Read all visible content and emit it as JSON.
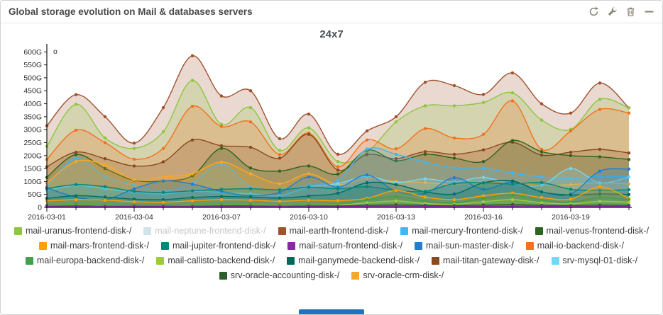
{
  "panel": {
    "title": "Global storage evolution on Mail & databases servers",
    "toolbar_icons": [
      "refresh-icon",
      "wrench-icon",
      "trash-icon",
      "collapse-icon"
    ],
    "icon_color": "#8d8679",
    "accent_bar_color": "#1e73be"
  },
  "chart": {
    "title": "24x7"
  },
  "chart_data": {
    "type": "area",
    "title": "24x7",
    "unit": "G",
    "ylim": [
      0,
      620
    ],
    "y_tick_step": 50,
    "y_tick_labels": [
      "0",
      "50G",
      "100G",
      "150G",
      "200G",
      "250G",
      "300G",
      "350G",
      "400G",
      "450G",
      "500G",
      "550G",
      "600G"
    ],
    "x_major_tick_labels": [
      "2016-03-01",
      "2016-03-04",
      "2016-03-07",
      "2016-03-10",
      "2016-03-13",
      "2016-03-16",
      "2016-03-19"
    ],
    "grid": false,
    "legend_position": "bottom",
    "annotation": "o",
    "dates": [
      "2016-03-01",
      "2016-03-02",
      "2016-03-03",
      "2016-03-04",
      "2016-03-05",
      "2016-03-06",
      "2016-03-07",
      "2016-03-08",
      "2016-03-09",
      "2016-03-10",
      "2016-03-11",
      "2016-03-12",
      "2016-03-13",
      "2016-03-14",
      "2016-03-15",
      "2016-03-16",
      "2016-03-17",
      "2016-03-18",
      "2016-03-19",
      "2016-03-20",
      "2016-03-21"
    ],
    "series": [
      {
        "name": "mail-uranus-frontend-disk-/",
        "color": "#8dc63f",
        "legend_row": 0,
        "disabled": false,
        "values": [
          235,
          398,
          268,
          228,
          292,
          490,
          320,
          385,
          220,
          307,
          177,
          213,
          330,
          392,
          392,
          405,
          442,
          337,
          301,
          417,
          384
        ]
      },
      {
        "name": "mail-neptune-frontend-disk-/",
        "color": "#cfe3e8",
        "legend_row": 0,
        "disabled": true,
        "values": null
      },
      {
        "name": "mail-earth-frontend-disk-/",
        "color": "#a0522d",
        "legend_row": 0,
        "disabled": false,
        "values": [
          315,
          435,
          350,
          248,
          385,
          585,
          430,
          450,
          265,
          360,
          205,
          295,
          350,
          483,
          470,
          436,
          519,
          400,
          364,
          480,
          384
        ]
      },
      {
        "name": "mail-mercury-frontend-disk-/",
        "color": "#41b6f2",
        "legend_row": 0,
        "disabled": false,
        "values": [
          80,
          190,
          120,
          88,
          62,
          95,
          168,
          80,
          70,
          86,
          105,
          225,
          205,
          175,
          152,
          152,
          132,
          118,
          112,
          120,
          118
        ]
      },
      {
        "name": "mail-venus-frontend-disk-/",
        "color": "#2e6422",
        "legend_row": 0,
        "disabled": false,
        "values": [
          116,
          204,
          150,
          105,
          102,
          122,
          228,
          152,
          140,
          160,
          129,
          221,
          180,
          205,
          190,
          177,
          258,
          215,
          200,
          195,
          185
        ]
      },
      {
        "name": "mail-mars-frontend-disk-/",
        "color": "#ffa000",
        "legend_row": 1,
        "disabled": false,
        "values": [
          25,
          30,
          28,
          22,
          20,
          26,
          30,
          28,
          24,
          28,
          26,
          35,
          65,
          40,
          30,
          45,
          55,
          38,
          32,
          80,
          35
        ]
      },
      {
        "name": "mail-jupiter-frontend-disk-/",
        "color": "#00897b",
        "legend_row": 1,
        "disabled": false,
        "values": [
          73,
          88,
          80,
          62,
          58,
          64,
          70,
          72,
          68,
          78,
          72,
          80,
          66,
          62,
          92,
          95,
          90,
          96,
          70,
          66,
          68
        ]
      },
      {
        "name": "mail-saturn-frontend-disk-/",
        "color": "#8e24aa",
        "legend_row": 1,
        "disabled": false,
        "values": [
          3,
          3,
          3,
          3,
          3,
          3,
          3,
          3,
          3,
          3,
          3,
          4,
          5,
          4,
          3,
          4,
          5,
          4,
          3,
          4,
          4
        ]
      },
      {
        "name": "mail-sun-master-disk-/",
        "color": "#1d80d2",
        "legend_row": 1,
        "disabled": false,
        "values": [
          75,
          40,
          30,
          72,
          102,
          90,
          62,
          45,
          58,
          118,
          78,
          125,
          62,
          55,
          115,
          70,
          98,
          60,
          52,
          140,
          148
        ]
      },
      {
        "name": "mail-io-backend-disk-/",
        "color": "#f2711c",
        "legend_row": 1,
        "disabled": false,
        "values": [
          185,
          298,
          250,
          186,
          228,
          390,
          312,
          330,
          204,
          287,
          157,
          260,
          226,
          304,
          268,
          282,
          411,
          224,
          295,
          378,
          364
        ]
      },
      {
        "name": "mail-europa-backend-disk-/",
        "color": "#43a047",
        "legend_row": 2,
        "disabled": false,
        "values": [
          8,
          12,
          10,
          9,
          8,
          10,
          12,
          11,
          10,
          12,
          14,
          30,
          42,
          25,
          18,
          35,
          48,
          28,
          20,
          38,
          30
        ]
      },
      {
        "name": "mail-callisto-backend-disk-/",
        "color": "#9ccc3d",
        "legend_row": 2,
        "disabled": false,
        "values": [
          6,
          8,
          7,
          6,
          6,
          7,
          8,
          8,
          7,
          8,
          9,
          18,
          25,
          15,
          12,
          22,
          30,
          18,
          14,
          24,
          20
        ]
      },
      {
        "name": "mail-ganymede-backend-disk-/",
        "color": "#00695c",
        "legend_row": 2,
        "disabled": false,
        "values": [
          35,
          45,
          40,
          32,
          30,
          38,
          42,
          40,
          36,
          44,
          55,
          95,
          88,
          60,
          52,
          95,
          102,
          60,
          48,
          52,
          50
        ]
      },
      {
        "name": "mail-titan-gateway-disk-/",
        "color": "#8a4a20",
        "legend_row": 2,
        "disabled": false,
        "values": [
          157,
          213,
          188,
          160,
          176,
          260,
          238,
          232,
          190,
          282,
          144,
          204,
          188,
          215,
          205,
          222,
          251,
          202,
          213,
          224,
          210
        ]
      },
      {
        "name": "srv-mysql-01-disk-/",
        "color": "#74d7f7",
        "legend_row": 2,
        "disabled": false,
        "values": [
          65,
          85,
          72,
          58,
          52,
          62,
          58,
          52,
          46,
          78,
          92,
          120,
          96,
          110,
          98,
          116,
          90,
          86,
          150,
          95,
          118
        ]
      },
      {
        "name": "srv-oracle-accounting-disk-/",
        "color": "#2c5f2d",
        "legend_row": 3,
        "disabled": false,
        "values": [
          5,
          6,
          5,
          5,
          5,
          5,
          6,
          6,
          5,
          6,
          6,
          8,
          10,
          8,
          7,
          9,
          11,
          8,
          7,
          9,
          8
        ]
      },
      {
        "name": "srv-oracle-crm-disk-/",
        "color": "#f9a825",
        "legend_row": 3,
        "disabled": false,
        "values": [
          94,
          177,
          165,
          107,
          118,
          130,
          175,
          130,
          92,
          130,
          88,
          112,
          100,
          96,
          88,
          97,
          97,
          85,
          88,
          95,
          90
        ]
      }
    ]
  }
}
